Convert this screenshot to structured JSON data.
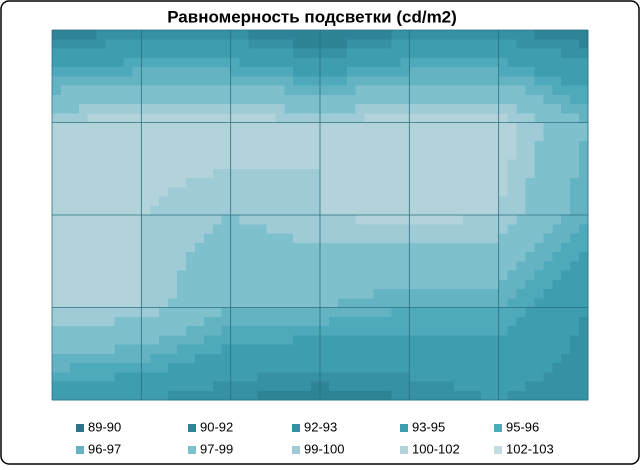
{
  "chart_data": {
    "type": "contour",
    "title": "Равномерность подсветки (cd/m2)",
    "z": [
      [
        91,
        92,
        92,
        90,
        92,
        92,
        91
      ],
      [
        100,
        101,
        101,
        100,
        101,
        101,
        97
      ],
      [
        100,
        100,
        99,
        100,
        100.5,
        100,
        96
      ],
      [
        100,
        100,
        97,
        97,
        96,
        96,
        93
      ],
      [
        94,
        93,
        92,
        91,
        92,
        93,
        92
      ]
    ],
    "series": [
      {
        "name": "89-90",
        "color": "#2b7488"
      },
      {
        "name": "90-92",
        "color": "#2f8397"
      },
      {
        "name": "92-93",
        "color": "#3691a5"
      },
      {
        "name": "93-95",
        "color": "#3f9db0"
      },
      {
        "name": "95-96",
        "color": "#4ea9bb"
      },
      {
        "name": "96-97",
        "color": "#63b3c3"
      },
      {
        "name": "97-99",
        "color": "#7fc0cd"
      },
      {
        "name": "99-100",
        "color": "#9ecbd5"
      },
      {
        "name": "100-102",
        "color": "#b3d3da"
      },
      {
        "name": "102-103",
        "color": "#c4dce1"
      }
    ],
    "grid": true
  }
}
